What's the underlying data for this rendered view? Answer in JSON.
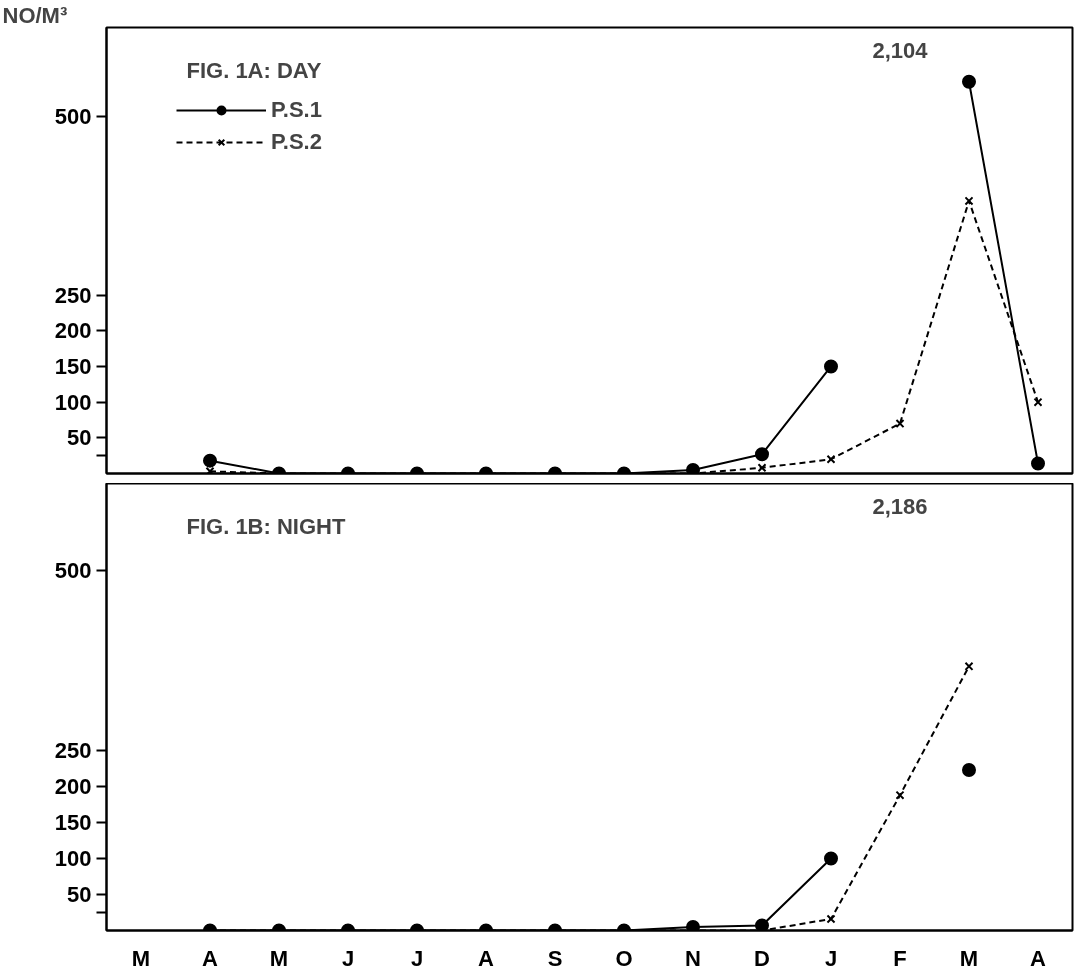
{
  "chart_data": [
    {
      "type": "line",
      "title": "FIG. 1A: DAY",
      "ylabel": "NO/M³",
      "categories": [
        null,
        null,
        null,
        null,
        null,
        null,
        null,
        null,
        null,
        null,
        null,
        null,
        null,
        null
      ],
      "ylim": [
        0,
        625
      ],
      "yticks": [
        {
          "value": 25,
          "label": null
        },
        50,
        100,
        150,
        200,
        250,
        500
      ],
      "grid": false,
      "legend": "top left",
      "series": [
        {
          "name": "P.S.1",
          "color": "#000000",
          "marker": "circle",
          "line_style": "solid",
          "values": [
            null,
            18,
            0,
            0,
            0,
            0,
            0,
            0,
            5,
            27,
            150,
            null,
            549,
            14
          ]
        },
        {
          "name": "P.S.2",
          "color": "#000000",
          "marker": "cross",
          "line_style": "dashed",
          "values": [
            null,
            3,
            0,
            0,
            0,
            0,
            0,
            0,
            0,
            8,
            20,
            70,
            382,
            100
          ]
        }
      ],
      "annotations": [
        "2,104"
      ]
    },
    {
      "type": "line",
      "title": "FIG. 1B:  NIGHT",
      "categories": [
        "M",
        "A",
        "M",
        "J",
        "J",
        "A",
        "S",
        "O",
        "N",
        "D",
        "J",
        "F",
        "M",
        "A"
      ],
      "ylim": [
        0,
        621
      ],
      "yticks": [
        {
          "value": 25,
          "label": null
        },
        50,
        100,
        150,
        200,
        250,
        500
      ],
      "grid": false,
      "series": [
        {
          "color": "#000000",
          "marker": "circle",
          "line_style": "solid",
          "values": [
            null,
            0,
            0,
            0,
            0,
            0,
            0,
            0,
            5,
            7,
            100,
            null,
            223,
            null
          ]
        },
        {
          "color": "#000000",
          "marker": "cross",
          "line_style": "dashed",
          "values": [
            null,
            0,
            0,
            0,
            0,
            0,
            0,
            0,
            0,
            0,
            16,
            188,
            367,
            null
          ]
        }
      ],
      "annotations": [
        "2,186"
      ]
    }
  ]
}
